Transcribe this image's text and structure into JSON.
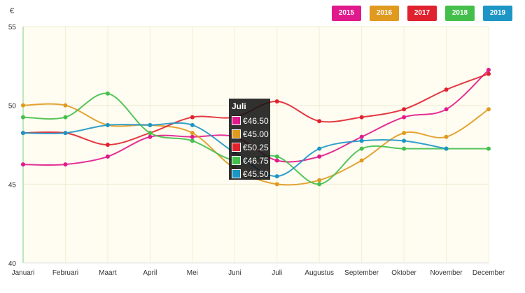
{
  "chart_data": {
    "type": "line",
    "unit_label": "€",
    "categories": [
      "Januari",
      "Februari",
      "Maart",
      "April",
      "Mei",
      "Juni",
      "Juli",
      "Augustus",
      "September",
      "Oktober",
      "November",
      "December"
    ],
    "ylim": [
      40,
      55
    ],
    "yticks": [
      40,
      45,
      50,
      55
    ],
    "series": [
      {
        "name": "2015",
        "color": "#e0198c",
        "values": [
          46.25,
          46.25,
          46.75,
          48.0,
          48.0,
          48.0,
          46.5,
          46.75,
          48.0,
          49.25,
          49.75,
          52.25
        ]
      },
      {
        "name": "2016",
        "color": "#e09a1f",
        "values": [
          50.0,
          50.0,
          48.75,
          48.75,
          48.25,
          46.0,
          45.0,
          45.25,
          46.5,
          48.25,
          48.0,
          49.75
        ]
      },
      {
        "name": "2017",
        "color": "#e0222f",
        "values": [
          48.25,
          48.25,
          47.5,
          48.25,
          49.25,
          49.25,
          50.25,
          49.0,
          49.25,
          49.75,
          51.0,
          52.0
        ]
      },
      {
        "name": "2018",
        "color": "#45bf4c",
        "values": [
          49.25,
          49.25,
          50.75,
          48.25,
          47.75,
          46.5,
          46.75,
          45.0,
          47.25,
          47.25,
          47.25,
          47.25
        ]
      },
      {
        "name": "2019",
        "color": "#1d96c5",
        "values": [
          48.25,
          48.25,
          48.75,
          48.75,
          48.75,
          47.0,
          45.5,
          47.25,
          47.75,
          47.75,
          47.25,
          null
        ]
      }
    ],
    "grid": true,
    "legend_position": "top-right",
    "tooltip": {
      "title": "Juli",
      "rows": [
        {
          "color": "#e0198c",
          "text": "€46.50"
        },
        {
          "color": "#e09a1f",
          "text": "€45.00"
        },
        {
          "color": "#e0222f",
          "text": "€50.25"
        },
        {
          "color": "#45bf4c",
          "text": "€46.75"
        },
        {
          "color": "#1d96c5",
          "text": "€45.50"
        }
      ]
    }
  },
  "legend": [
    {
      "label": "2015",
      "color": "#e0198c"
    },
    {
      "label": "2016",
      "color": "#e09a1f"
    },
    {
      "label": "2017",
      "color": "#e0222f"
    },
    {
      "label": "2018",
      "color": "#45bf4c"
    },
    {
      "label": "2019",
      "color": "#1d96c5"
    }
  ]
}
